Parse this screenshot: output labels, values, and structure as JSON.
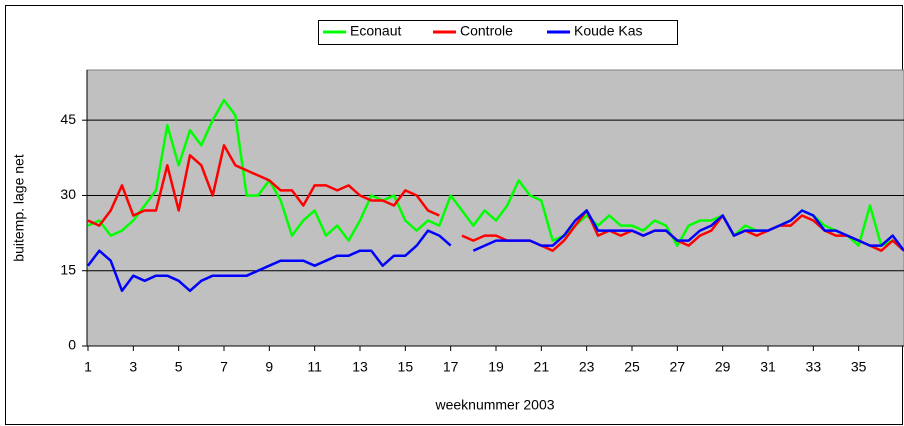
{
  "chart_data": {
    "type": "line",
    "xlabel": "weeknummer 2003",
    "ylabel": "buitemp. lage net",
    "x": [
      1,
      1.5,
      2,
      2.5,
      3,
      3.5,
      4,
      4.5,
      5,
      5.5,
      6,
      6.5,
      7,
      7.5,
      8,
      8.5,
      9,
      9.5,
      10,
      10.5,
      11,
      11.5,
      12,
      12.5,
      13,
      13.5,
      14,
      14.5,
      15,
      15.5,
      16,
      16.5,
      17,
      17.5,
      18,
      18.5,
      19,
      19.5,
      20,
      20.5,
      21,
      21.5,
      22,
      22.5,
      23,
      23.5,
      24,
      24.5,
      25,
      25.5,
      26,
      26.5,
      27,
      27.5,
      28,
      28.5,
      29,
      29.5,
      30,
      30.5,
      31,
      31.5,
      32,
      32.5,
      33,
      33.5,
      34,
      34.5,
      35,
      35.5,
      36,
      36.5,
      37
    ],
    "series": [
      {
        "name": "Econaut",
        "color": "#00ff00",
        "values": [
          24,
          25,
          22,
          23,
          25,
          28,
          31,
          44,
          36,
          43,
          40,
          45,
          49,
          46,
          30,
          30,
          33,
          29,
          22,
          25,
          27,
          22,
          24,
          21,
          25,
          30,
          29,
          30,
          25,
          23,
          25,
          24,
          30,
          27,
          24,
          27,
          25,
          28,
          33,
          30,
          29,
          21,
          22,
          24,
          26,
          24,
          26,
          24,
          24,
          23,
          25,
          24,
          20,
          24,
          25,
          25,
          26,
          22,
          24,
          23,
          23,
          24,
          25,
          27,
          26,
          24,
          23,
          22,
          20,
          28,
          20,
          21,
          19
        ]
      },
      {
        "name": "Controle",
        "color": "#ff0000",
        "values": [
          25,
          24,
          27,
          32,
          26,
          27,
          27,
          36,
          27,
          38,
          36,
          30,
          40,
          36,
          35,
          34,
          33,
          31,
          31,
          28,
          32,
          32,
          31,
          32,
          30,
          29,
          29,
          28,
          31,
          30,
          27,
          26,
          null,
          22,
          21,
          22,
          22,
          21,
          21,
          21,
          20,
          19,
          21,
          24,
          27,
          22,
          23,
          22,
          23,
          22,
          23,
          23,
          21,
          20,
          22,
          23,
          26,
          22,
          23,
          22,
          23,
          24,
          24,
          26,
          25,
          23,
          22,
          22,
          21,
          20,
          19,
          21,
          19
        ]
      },
      {
        "name": "Koude Kas",
        "color": "#0000ff",
        "values": [
          16,
          19,
          17,
          11,
          14,
          13,
          14,
          14,
          13,
          11,
          13,
          14,
          14,
          14,
          14,
          15,
          16,
          17,
          17,
          17,
          16,
          17,
          18,
          18,
          19,
          19,
          16,
          18,
          18,
          20,
          23,
          22,
          20,
          null,
          19,
          20,
          21,
          21,
          21,
          21,
          20,
          20,
          22,
          25,
          27,
          23,
          23,
          23,
          23,
          22,
          23,
          23,
          21,
          21,
          23,
          24,
          26,
          22,
          23,
          23,
          23,
          24,
          25,
          27,
          26,
          23,
          23,
          22,
          21,
          20,
          20,
          22,
          19
        ]
      }
    ],
    "xlim": [
      1,
      37
    ],
    "xticks": [
      1,
      3,
      5,
      7,
      9,
      11,
      13,
      15,
      17,
      19,
      21,
      23,
      25,
      27,
      29,
      31,
      33,
      35
    ],
    "ylim": [
      0,
      55
    ],
    "yticks": [
      0,
      15,
      30,
      45
    ],
    "grid": true,
    "legend": "top"
  }
}
